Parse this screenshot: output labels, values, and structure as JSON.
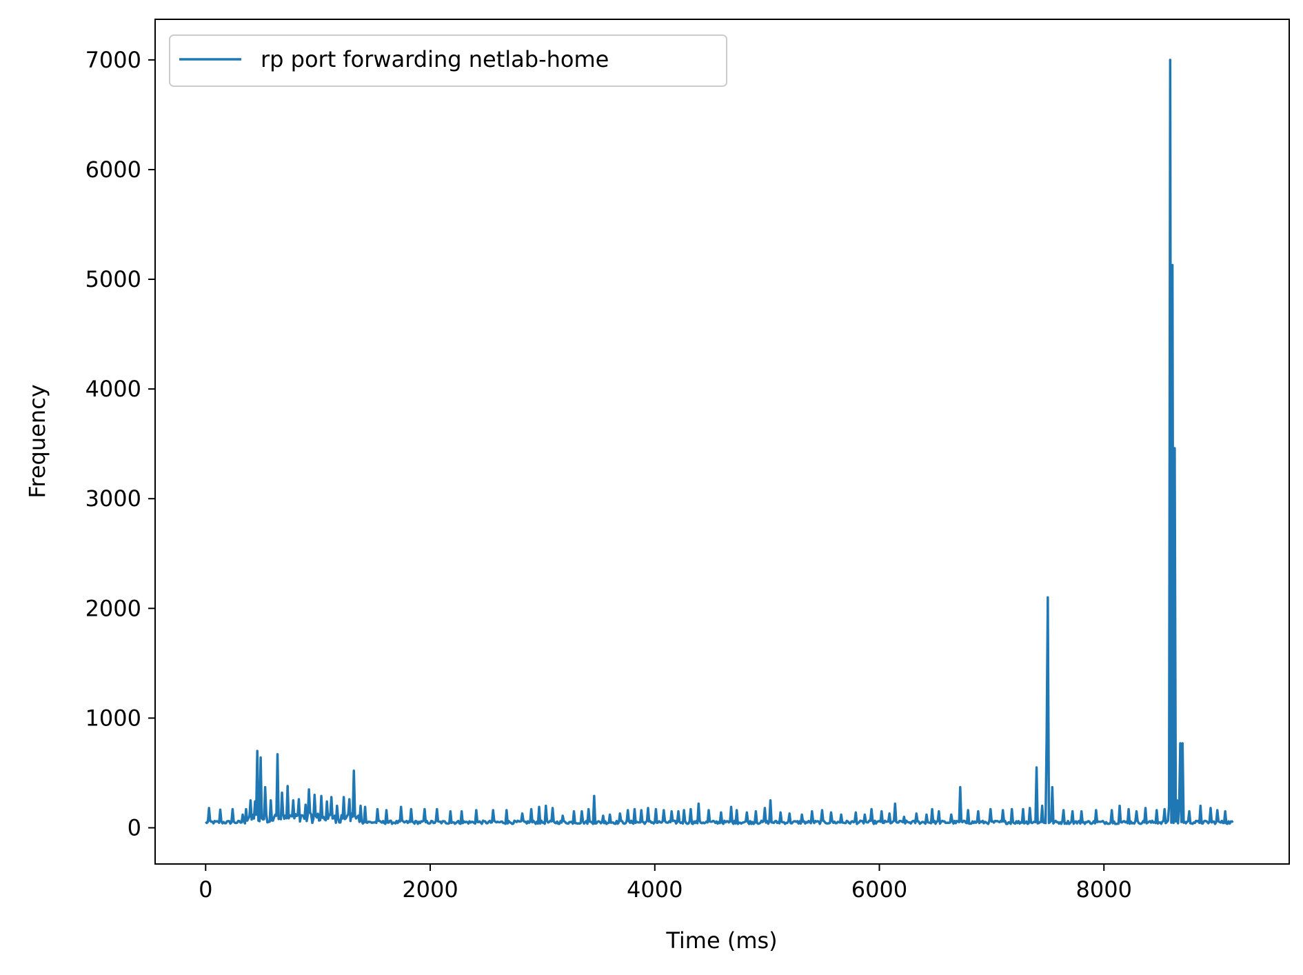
{
  "chart_data": {
    "type": "line",
    "title": "",
    "xlabel": "Time (ms)",
    "ylabel": "Frequency",
    "xlim": [
      -450,
      9650
    ],
    "ylim": [
      -330,
      7370
    ],
    "x_ticks": [
      0,
      2000,
      4000,
      6000,
      8000
    ],
    "y_ticks": [
      0,
      1000,
      2000,
      3000,
      4000,
      5000,
      6000,
      7000
    ],
    "grid": false,
    "legend_position": "upper-left",
    "series": [
      {
        "name": "rp port forwarding netlab-home",
        "color": "#1f77b4",
        "x_range": [
          0,
          9150
        ],
        "baseline_level": 50,
        "spikes": [
          [
            30,
            180
          ],
          [
            130,
            165
          ],
          [
            240,
            170
          ],
          [
            330,
            120
          ],
          [
            360,
            170
          ],
          [
            400,
            250
          ],
          [
            440,
            240
          ],
          [
            460,
            700
          ],
          [
            490,
            640
          ],
          [
            530,
            370
          ],
          [
            580,
            250
          ],
          [
            640,
            670
          ],
          [
            680,
            320
          ],
          [
            730,
            380
          ],
          [
            780,
            250
          ],
          [
            830,
            260
          ],
          [
            890,
            210
          ],
          [
            920,
            350
          ],
          [
            970,
            300
          ],
          [
            1030,
            290
          ],
          [
            1080,
            240
          ],
          [
            1120,
            280
          ],
          [
            1170,
            200
          ],
          [
            1230,
            280
          ],
          [
            1280,
            260
          ],
          [
            1320,
            520
          ],
          [
            1380,
            200
          ],
          [
            1420,
            190
          ],
          [
            1530,
            170
          ],
          [
            1610,
            160
          ],
          [
            1740,
            190
          ],
          [
            1830,
            170
          ],
          [
            1950,
            170
          ],
          [
            2060,
            170
          ],
          [
            2180,
            150
          ],
          [
            2280,
            150
          ],
          [
            2410,
            160
          ],
          [
            2560,
            160
          ],
          [
            2680,
            160
          ],
          [
            2820,
            130
          ],
          [
            2900,
            170
          ],
          [
            2970,
            190
          ],
          [
            3030,
            200
          ],
          [
            3090,
            180
          ],
          [
            3180,
            110
          ],
          [
            3280,
            150
          ],
          [
            3350,
            150
          ],
          [
            3410,
            170
          ],
          [
            3460,
            290
          ],
          [
            3540,
            110
          ],
          [
            3600,
            120
          ],
          [
            3690,
            130
          ],
          [
            3760,
            160
          ],
          [
            3820,
            170
          ],
          [
            3880,
            160
          ],
          [
            3940,
            180
          ],
          [
            4010,
            170
          ],
          [
            4080,
            160
          ],
          [
            4150,
            150
          ],
          [
            4210,
            150
          ],
          [
            4260,
            160
          ],
          [
            4320,
            170
          ],
          [
            4390,
            220
          ],
          [
            4480,
            160
          ],
          [
            4590,
            140
          ],
          [
            4680,
            190
          ],
          [
            4730,
            160
          ],
          [
            4820,
            140
          ],
          [
            4900,
            150
          ],
          [
            4980,
            180
          ],
          [
            5030,
            250
          ],
          [
            5120,
            140
          ],
          [
            5200,
            130
          ],
          [
            5310,
            120
          ],
          [
            5400,
            150
          ],
          [
            5490,
            160
          ],
          [
            5570,
            140
          ],
          [
            5660,
            120
          ],
          [
            5790,
            140
          ],
          [
            5870,
            120
          ],
          [
            5930,
            170
          ],
          [
            6020,
            150
          ],
          [
            6090,
            130
          ],
          [
            6140,
            220
          ],
          [
            6220,
            100
          ],
          [
            6330,
            130
          ],
          [
            6420,
            120
          ],
          [
            6470,
            170
          ],
          [
            6530,
            150
          ],
          [
            6640,
            120
          ],
          [
            6720,
            370
          ],
          [
            6790,
            160
          ],
          [
            6880,
            150
          ],
          [
            6990,
            170
          ],
          [
            7100,
            160
          ],
          [
            7180,
            170
          ],
          [
            7280,
            170
          ],
          [
            7340,
            180
          ],
          [
            7400,
            550
          ],
          [
            7450,
            200
          ],
          [
            7490,
            840
          ],
          [
            7500,
            2100
          ],
          [
            7540,
            370
          ],
          [
            7640,
            160
          ],
          [
            7720,
            150
          ],
          [
            7800,
            150
          ],
          [
            7930,
            160
          ],
          [
            8070,
            160
          ],
          [
            8140,
            200
          ],
          [
            8220,
            170
          ],
          [
            8290,
            150
          ],
          [
            8370,
            180
          ],
          [
            8470,
            160
          ],
          [
            8540,
            170
          ],
          [
            8580,
            200
          ],
          [
            8590,
            7000
          ],
          [
            8610,
            5130
          ],
          [
            8630,
            3460
          ],
          [
            8650,
            250
          ],
          [
            8670,
            200
          ],
          [
            8680,
            770
          ],
          [
            8700,
            770
          ],
          [
            8760,
            150
          ],
          [
            8860,
            200
          ],
          [
            8950,
            180
          ],
          [
            9010,
            160
          ],
          [
            9080,
            150
          ]
        ]
      }
    ]
  }
}
